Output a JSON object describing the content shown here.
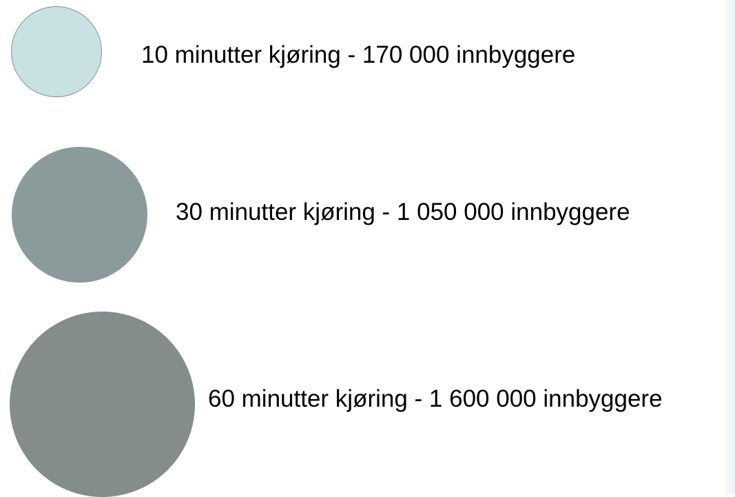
{
  "items": [
    {
      "label": "10 minutter kjøring - 170 000 innbyggere",
      "minutes": 10,
      "population": 170000,
      "color": "#c8e2e4"
    },
    {
      "label": "30 minutter kjøring - 1 050 000 innbyggere",
      "minutes": 30,
      "population": 1050000,
      "color": "#8b9b9b"
    },
    {
      "label": "60 minutter kjøring - 1 600 000 innbyggere",
      "minutes": 60,
      "population": 1600000,
      "color": "#858d8c"
    }
  ]
}
